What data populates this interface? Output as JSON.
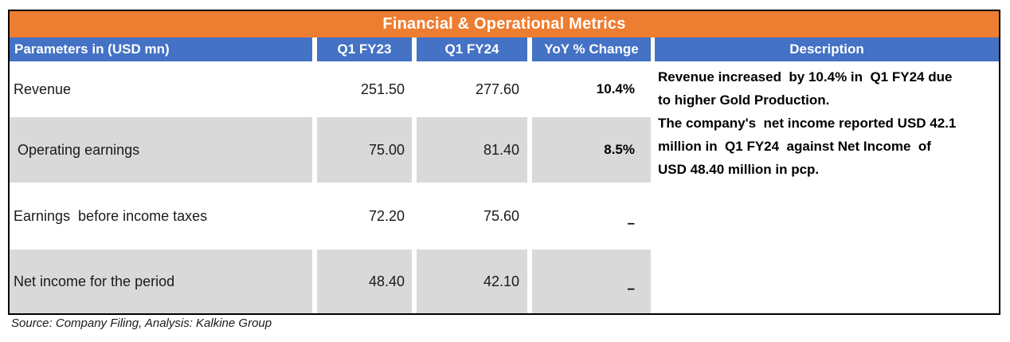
{
  "title": "Financial & Operational Metrics",
  "colors": {
    "title_bar": "#ED7D31",
    "header_bar": "#4472C4",
    "row_shade": "#D9D9D9",
    "text": "#1A1A1A"
  },
  "table": {
    "headers": [
      "Parameters in (USD mn)",
      "Q1 FY23",
      "Q1 FY24",
      "YoY % Change",
      "Description"
    ],
    "rows": [
      {
        "parameter": "Revenue",
        "q1fy23": "251.50",
        "q1fy24": "277.60",
        "yoy": "10.4%"
      },
      {
        "parameter": " Operating earnings",
        "q1fy23": "75.00",
        "q1fy24": "81.40",
        "yoy": "8.5%"
      },
      {
        "parameter": "Earnings  before income taxes",
        "q1fy23": "72.20",
        "q1fy24": "75.60",
        "yoy": "–"
      },
      {
        "parameter": "Net income for the period",
        "q1fy23": "48.40",
        "q1fy24": "42.10",
        "yoy": "–"
      }
    ],
    "description": "Revenue increased  by 10.4% in  Q1 FY24 due\nto higher Gold Production.\nThe company's  net income reported USD 42.1\nmillion in  Q1 FY24  against Net Income  of\nUSD 48.40 million in pcp."
  },
  "source_note": "Source: Company Filing, Analysis: Kalkine Group",
  "chart_data": {
    "type": "table",
    "title": "Financial & Operational Metrics",
    "columns": [
      "Parameters in (USD mn)",
      "Q1 FY23",
      "Q1 FY24",
      "YoY % Change"
    ],
    "rows": [
      {
        "parameter": "Revenue",
        "q1_fy23": 251.5,
        "q1_fy24": 277.6,
        "yoy_pct_change": "10.4%"
      },
      {
        "parameter": "Operating earnings",
        "q1_fy23": 75.0,
        "q1_fy24": 81.4,
        "yoy_pct_change": "8.5%"
      },
      {
        "parameter": "Earnings before income taxes",
        "q1_fy23": 72.2,
        "q1_fy24": 75.6,
        "yoy_pct_change": "–"
      },
      {
        "parameter": "Net income for the period",
        "q1_fy23": 48.4,
        "q1_fy24": 42.1,
        "yoy_pct_change": "–"
      }
    ],
    "notes": [
      "Revenue increased by 10.4% in Q1 FY24 due to higher Gold Production.",
      "The company's net income reported USD 42.1 million in Q1 FY24 against Net Income of USD 48.40 million in pcp."
    ],
    "source": "Source: Company Filing, Analysis: Kalkine Group"
  }
}
